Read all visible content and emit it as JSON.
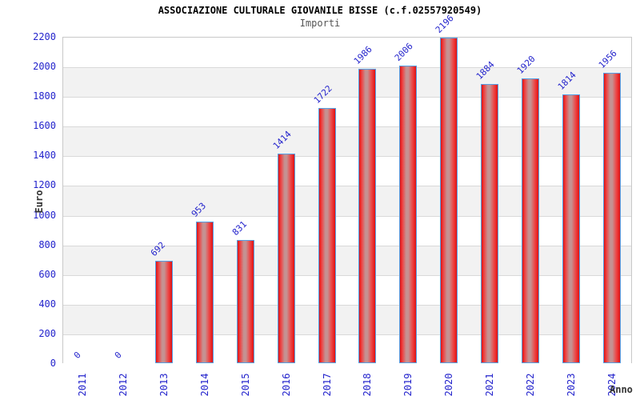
{
  "chart_data": {
    "type": "bar",
    "title": "ASSOCIAZIONE CULTURALE GIOVANILE BISSE (c.f.02557920549)",
    "subtitle": "Importi",
    "xlabel": "Anno",
    "ylabel": "Euro",
    "categories": [
      "2011",
      "2012",
      "2013",
      "2014",
      "2015",
      "2016",
      "2017",
      "2018",
      "2019",
      "2020",
      "2021",
      "2022",
      "2023",
      "2024"
    ],
    "values": [
      0,
      0,
      692,
      953,
      831,
      1414,
      1722,
      1986,
      2006,
      2196,
      1884,
      1920,
      1814,
      1956
    ],
    "ylim": [
      0,
      2200
    ],
    "ytick_step": 200,
    "yticks": [
      0,
      200,
      400,
      600,
      800,
      1000,
      1200,
      1400,
      1600,
      1800,
      2000,
      2200
    ],
    "legend": "none",
    "grid": "alternating horizontal bands every 200 with light gridlines",
    "bar_value_labels_rotation_deg": -45,
    "x_tick_labels_rotation_deg": -90,
    "colors": {
      "label_blue": "#2323cc",
      "bar_red": "#e01212",
      "bar_highlight": "#c59292",
      "bar_border_blue": "#55a0e6",
      "band_gray": "#f2f2f2",
      "gridline": "#d9d9d9",
      "plot_border": "#c8c8c8",
      "title_color": "#000000",
      "subtitle_color": "#555555",
      "axis_title_color": "#333333"
    }
  }
}
